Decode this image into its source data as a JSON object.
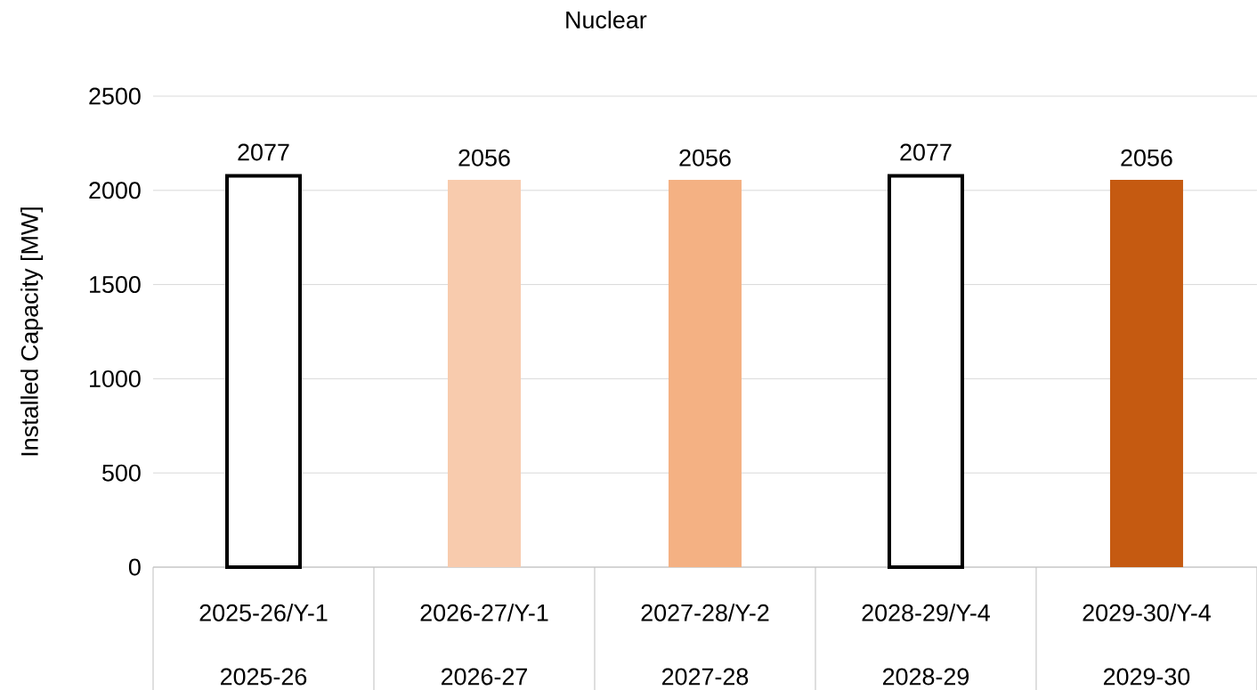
{
  "chart_data": {
    "type": "bar",
    "title": "Nuclear",
    "ylabel": "Installed Capacity [MW]",
    "categories": [
      "2025-26/Y-1",
      "2026-27/Y-1",
      "2027-28/Y-2",
      "2028-29/Y-4",
      "2029-30/Y-4"
    ],
    "annotations": [
      "2025-26",
      "2026-27",
      "2027-28",
      "2028-29",
      "2029-30"
    ],
    "values": [
      2077,
      2056,
      2056,
      2077,
      2056
    ],
    "colors": [
      "#ffffff",
      "#f8cbad",
      "#f4b183",
      "#ffffff",
      "#c55a11"
    ],
    "ylim": [
      0,
      2500
    ],
    "yticks": [
      0,
      500,
      1000,
      1500,
      2000,
      2500
    ],
    "grid": "y",
    "data_labels": true
  }
}
